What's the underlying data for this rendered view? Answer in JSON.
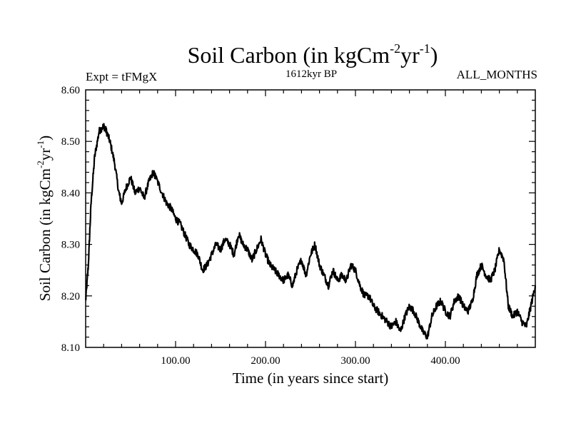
{
  "chart_data": {
    "type": "line",
    "title": {
      "main": "Soil Carbon (in kgCm",
      "sup1": "-2",
      "mid": "yr",
      "sup2": "-1",
      "end": ")"
    },
    "subtitle_left": "Expt = tFMgX",
    "subtitle_center": "1612kyr BP",
    "subtitle_right": "ALL_MONTHS",
    "xlabel": "Time (in years since start)",
    "ylabel": {
      "main": "Soil Carbon (in kgCm",
      "sup1": "-2",
      "mid": "yr",
      "sup2": "-1",
      "end": ")"
    },
    "xlim": [
      0,
      500
    ],
    "ylim": [
      8.1,
      8.6
    ],
    "xticks": [
      100,
      200,
      300,
      400
    ],
    "xtick_labels": [
      "100.00",
      "200.00",
      "300.00",
      "400.00"
    ],
    "yticks": [
      8.1,
      8.2,
      8.3,
      8.4,
      8.5,
      8.6
    ],
    "ytick_labels": [
      "8.10",
      "8.20",
      "8.30",
      "8.40",
      "8.50",
      "8.60"
    ],
    "line_color": "#000000",
    "series": [
      {
        "name": "Soil Carbon",
        "x": [
          0,
          3,
          6,
          10,
          15,
          20,
          23,
          27,
          32,
          37,
          40,
          45,
          50,
          55,
          60,
          65,
          70,
          75,
          78,
          85,
          90,
          95,
          100,
          105,
          110,
          115,
          120,
          125,
          130,
          135,
          140,
          145,
          150,
          155,
          160,
          165,
          170,
          175,
          180,
          185,
          190,
          195,
          200,
          205,
          210,
          215,
          220,
          225,
          230,
          235,
          240,
          245,
          250,
          255,
          260,
          265,
          270,
          275,
          280,
          285,
          290,
          295,
          300,
          305,
          310,
          315,
          320,
          325,
          330,
          335,
          340,
          345,
          350,
          355,
          360,
          365,
          370,
          375,
          380,
          385,
          390,
          395,
          400,
          405,
          410,
          415,
          420,
          425,
          430,
          435,
          440,
          445,
          450,
          455,
          460,
          465,
          470,
          475,
          480,
          485,
          490,
          495,
          500
        ],
        "values": [
          8.19,
          8.26,
          8.38,
          8.47,
          8.52,
          8.53,
          8.52,
          8.5,
          8.46,
          8.4,
          8.38,
          8.41,
          8.43,
          8.4,
          8.41,
          8.39,
          8.42,
          8.44,
          8.43,
          8.4,
          8.38,
          8.37,
          8.35,
          8.34,
          8.32,
          8.3,
          8.29,
          8.28,
          8.25,
          8.26,
          8.28,
          8.3,
          8.29,
          8.31,
          8.3,
          8.28,
          8.32,
          8.3,
          8.29,
          8.27,
          8.29,
          8.31,
          8.28,
          8.26,
          8.25,
          8.24,
          8.23,
          8.24,
          8.22,
          8.25,
          8.27,
          8.24,
          8.28,
          8.3,
          8.26,
          8.24,
          8.22,
          8.25,
          8.23,
          8.24,
          8.23,
          8.26,
          8.25,
          8.22,
          8.2,
          8.2,
          8.18,
          8.17,
          8.16,
          8.15,
          8.14,
          8.15,
          8.13,
          8.16,
          8.18,
          8.17,
          8.15,
          8.13,
          8.12,
          8.16,
          8.18,
          8.19,
          8.17,
          8.16,
          8.19,
          8.2,
          8.18,
          8.17,
          8.19,
          8.24,
          8.26,
          8.24,
          8.23,
          8.25,
          8.29,
          8.27,
          8.18,
          8.16,
          8.17,
          8.15,
          8.14,
          8.18,
          8.22
        ]
      }
    ]
  }
}
